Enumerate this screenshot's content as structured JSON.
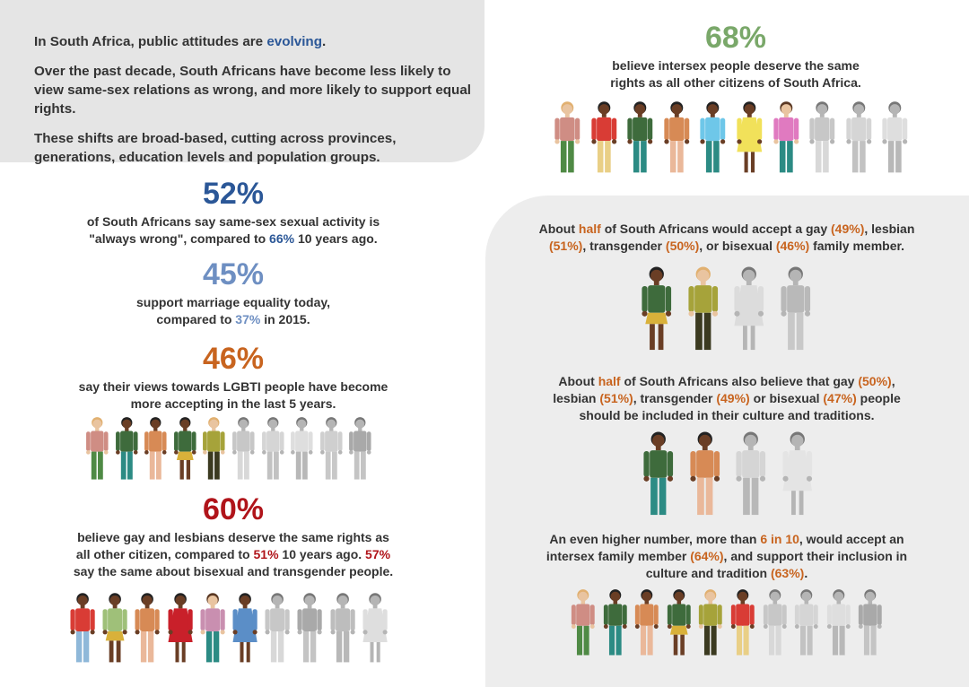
{
  "intro": {
    "line1_prefix": "In South Africa, public attitudes are ",
    "line1_highlight": "evolving",
    "line1_suffix": ".",
    "para2": "Over the past decade, South Africans have become less likely to view same-sex relations as wrong, and more likely to support equal rights.",
    "para3": "These shifts are broad-based, cutting across provinces, generations, education levels and population groups."
  },
  "stat_intersex": {
    "pct": "68%",
    "text": "believe intersex people deserve the same rights as all other citizens of South Africa."
  },
  "stat_wrong": {
    "pct": "52%",
    "t1": "of South Africans say same-sex sexual activity is \"always wrong\", compared to ",
    "h1": "66%",
    "t2": " 10 years ago."
  },
  "stat_marriage": {
    "pct": "45%",
    "t1": "support marriage equality today, compared to ",
    "h1": "37%",
    "t2": " in 2015."
  },
  "stat_views": {
    "pct": "46%",
    "text": "say their views towards LGBTI people have become more accepting in the last 5 years."
  },
  "stat_rights": {
    "pct": "60%",
    "t1": "believe gay and lesbians deserve the same rights as all other citizen, compared to ",
    "h1": "51%",
    "t2": " 10 years ago. ",
    "h2": "57%",
    "t3": " say the same about bisexual and transgender people."
  },
  "family": {
    "t1": "About ",
    "h1": "half",
    "t2": " of South Africans would accept a gay ",
    "h2": "(49%)",
    "t3": ", lesbian ",
    "h3": "(51%)",
    "t4": ", transgender ",
    "h4": "(50%)",
    "t5": ", or bisexual ",
    "h5": "(46%)",
    "t6": " family member."
  },
  "culture": {
    "t1": "About ",
    "h1": "half",
    "t2": " of South Africans also believe that gay ",
    "h2": "(50%)",
    "t3": ", lesbian ",
    "h3": "(51%)",
    "t4": ", transgender ",
    "h4": "(49%)",
    "t5": " or bisexual ",
    "h5": "(47%)",
    "t6": " people should be included in their culture and traditions."
  },
  "higher": {
    "t1": "An even higher number, more than ",
    "h1": "6 in 10",
    "t2": ", would accept an intersex family member ",
    "h2": "(64%)",
    "t3": ", and support their inclusion in culture and tradition ",
    "h3": "(63%)",
    "t4": "."
  },
  "colors": {
    "panel_gray": "#e5e5e5",
    "text": "#333333",
    "blue": "#2b5797",
    "light_blue": "#6e8fc2",
    "orange": "#c8641f",
    "red": "#b0141a",
    "green": "#7aa86a"
  },
  "icon_rows": {
    "intersex_row": [
      {
        "shirt": "#cf8d84",
        "pants": "#4f8a45",
        "skin": "#e9c4a0",
        "hair": "#e1b070"
      },
      {
        "shirt": "#d93c35",
        "pants": "#e9cf86",
        "skin": "#6a3e25",
        "hair": "#222"
      },
      {
        "shirt": "#3e6b3c",
        "pants": "#2c8b84",
        "skin": "#6a3e25",
        "hair": "#222"
      },
      {
        "shirt": "#d78a55",
        "pants": "#eab89a",
        "skin": "#6a3e25",
        "hair": "#222"
      },
      {
        "shirt": "#6ec7e9",
        "pants": "#2c8b84",
        "skin": "#6a3e25",
        "hair": "#222"
      },
      {
        "shirt": "#f1e15a",
        "pants": null,
        "skin": "#6a3e25",
        "hair": "#222",
        "dress": true
      },
      {
        "shirt": "#e07ac0",
        "pants": "#2c8b84",
        "skin": "#e9c4a0",
        "hair": "#5a3823"
      },
      {
        "shirt": "#c7c7c7",
        "pants": "#d8d8d8",
        "skin": "#b5b5b5",
        "hair": "#777"
      },
      {
        "shirt": "#d5d5d5",
        "pants": "#c2c2c2",
        "skin": "#b5b5b5",
        "hair": "#777"
      },
      {
        "shirt": "#dedede",
        "pants": "#b8b8b8",
        "skin": "#b5b5b5",
        "hair": "#777"
      }
    ],
    "views_row": [
      {
        "shirt": "#cf8d84",
        "pants": "#4f8a45",
        "skin": "#e9c4a0",
        "hair": "#e1b070"
      },
      {
        "shirt": "#3e6b3c",
        "pants": "#2c8b84",
        "skin": "#6a3e25",
        "hair": "#222"
      },
      {
        "shirt": "#d78a55",
        "pants": "#eab89a",
        "skin": "#6a3e25",
        "hair": "#222"
      },
      {
        "shirt": "#3e6b3c",
        "pants": "#d9b13a",
        "skin": "#6a3e25",
        "hair": "#222",
        "skirt": true
      },
      {
        "shirt": "#a6a33a",
        "pants": "#3b3a20",
        "skin": "#e9c4a0",
        "hair": "#e1b070"
      },
      {
        "shirt": "#c7c7c7",
        "pants": "#d8d8d8",
        "skin": "#b5b5b5",
        "hair": "#777"
      },
      {
        "shirt": "#d5d5d5",
        "pants": "#c2c2c2",
        "skin": "#b5b5b5",
        "hair": "#777"
      },
      {
        "shirt": "#dedede",
        "pants": "#b8b8b8",
        "skin": "#b5b5b5",
        "hair": "#777"
      },
      {
        "shirt": "#cfcfcf",
        "pants": "#c8c8c8",
        "skin": "#b5b5b5",
        "hair": "#777"
      },
      {
        "shirt": "#a9a9a9",
        "pants": "#c4c4c4",
        "skin": "#b5b5b5",
        "hair": "#777"
      }
    ],
    "rights_row": [
      {
        "shirt": "#d93c35",
        "pants": "#8fb8d9",
        "skin": "#6a3e25",
        "hair": "#222"
      },
      {
        "shirt": "#9fc079",
        "pants": "#d9b13a",
        "skin": "#6a3e25",
        "hair": "#222",
        "skirt": true
      },
      {
        "shirt": "#d78a55",
        "pants": "#eab89a",
        "skin": "#6a3e25",
        "hair": "#222"
      },
      {
        "shirt": "#c9202a",
        "pants": null,
        "skin": "#6a3e25",
        "hair": "#222",
        "dress": true
      },
      {
        "shirt": "#c98fb0",
        "pants": "#2c8b84",
        "skin": "#e9c4a0",
        "hair": "#5a3823"
      },
      {
        "shirt": "#5b8ec7",
        "pants": null,
        "skin": "#6a3e25",
        "hair": "#222",
        "dress": true
      },
      {
        "shirt": "#c7c7c7",
        "pants": "#d8d8d8",
        "skin": "#b5b5b5",
        "hair": "#777"
      },
      {
        "shirt": "#a9a9a9",
        "pants": "#c4c4c4",
        "skin": "#b5b5b5",
        "hair": "#777"
      },
      {
        "shirt": "#bdbdbd",
        "pants": "#b8b8b8",
        "skin": "#b5b5b5",
        "hair": "#777"
      },
      {
        "shirt": "#dedede",
        "pants": null,
        "skin": "#b5b5b5",
        "hair": "#777",
        "dress": true
      }
    ],
    "family_row": [
      {
        "shirt": "#3e6b3c",
        "pants": "#d9b13a",
        "skin": "#6a3e25",
        "hair": "#222",
        "skirt": true
      },
      {
        "shirt": "#a6a33a",
        "pants": "#3b3a20",
        "skin": "#e9c4a0",
        "hair": "#e1b070"
      },
      {
        "shirt": "#dcdcdc",
        "pants": null,
        "skin": "#b5b5b5",
        "hair": "#777",
        "dress": true
      },
      {
        "shirt": "#b9b9b9",
        "pants": "#c8c8c8",
        "skin": "#b5b5b5",
        "hair": "#777"
      }
    ],
    "culture_row": [
      {
        "shirt": "#3e6b3c",
        "pants": "#2c8b84",
        "skin": "#6a3e25",
        "hair": "#222"
      },
      {
        "shirt": "#d78a55",
        "pants": "#eab89a",
        "skin": "#6a3e25",
        "hair": "#222"
      },
      {
        "shirt": "#d5d5d5",
        "pants": "#b8b8b8",
        "skin": "#b5b5b5",
        "hair": "#777"
      },
      {
        "shirt": "#e4e4e4",
        "pants": null,
        "skin": "#b5b5b5",
        "hair": "#777",
        "dress": true
      }
    ],
    "higher_row": [
      {
        "shirt": "#cf8d84",
        "pants": "#4f8a45",
        "skin": "#e9c4a0",
        "hair": "#e1b070"
      },
      {
        "shirt": "#3e6b3c",
        "pants": "#2c8b84",
        "skin": "#6a3e25",
        "hair": "#222"
      },
      {
        "shirt": "#d78a55",
        "pants": "#eab89a",
        "skin": "#6a3e25",
        "hair": "#222"
      },
      {
        "shirt": "#3e6b3c",
        "pants": "#d9b13a",
        "skin": "#6a3e25",
        "hair": "#222",
        "skirt": true
      },
      {
        "shirt": "#a6a33a",
        "pants": "#3b3a20",
        "skin": "#e9c4a0",
        "hair": "#e1b070"
      },
      {
        "shirt": "#d93c35",
        "pants": "#e9cf86",
        "skin": "#6a3e25",
        "hair": "#222"
      },
      {
        "shirt": "#c7c7c7",
        "pants": "#d8d8d8",
        "skin": "#b5b5b5",
        "hair": "#777"
      },
      {
        "shirt": "#d5d5d5",
        "pants": "#c2c2c2",
        "skin": "#b5b5b5",
        "hair": "#777"
      },
      {
        "shirt": "#dedede",
        "pants": "#b8b8b8",
        "skin": "#b5b5b5",
        "hair": "#777"
      },
      {
        "shirt": "#a9a9a9",
        "pants": "#c4c4c4",
        "skin": "#b5b5b5",
        "hair": "#777"
      }
    ]
  }
}
